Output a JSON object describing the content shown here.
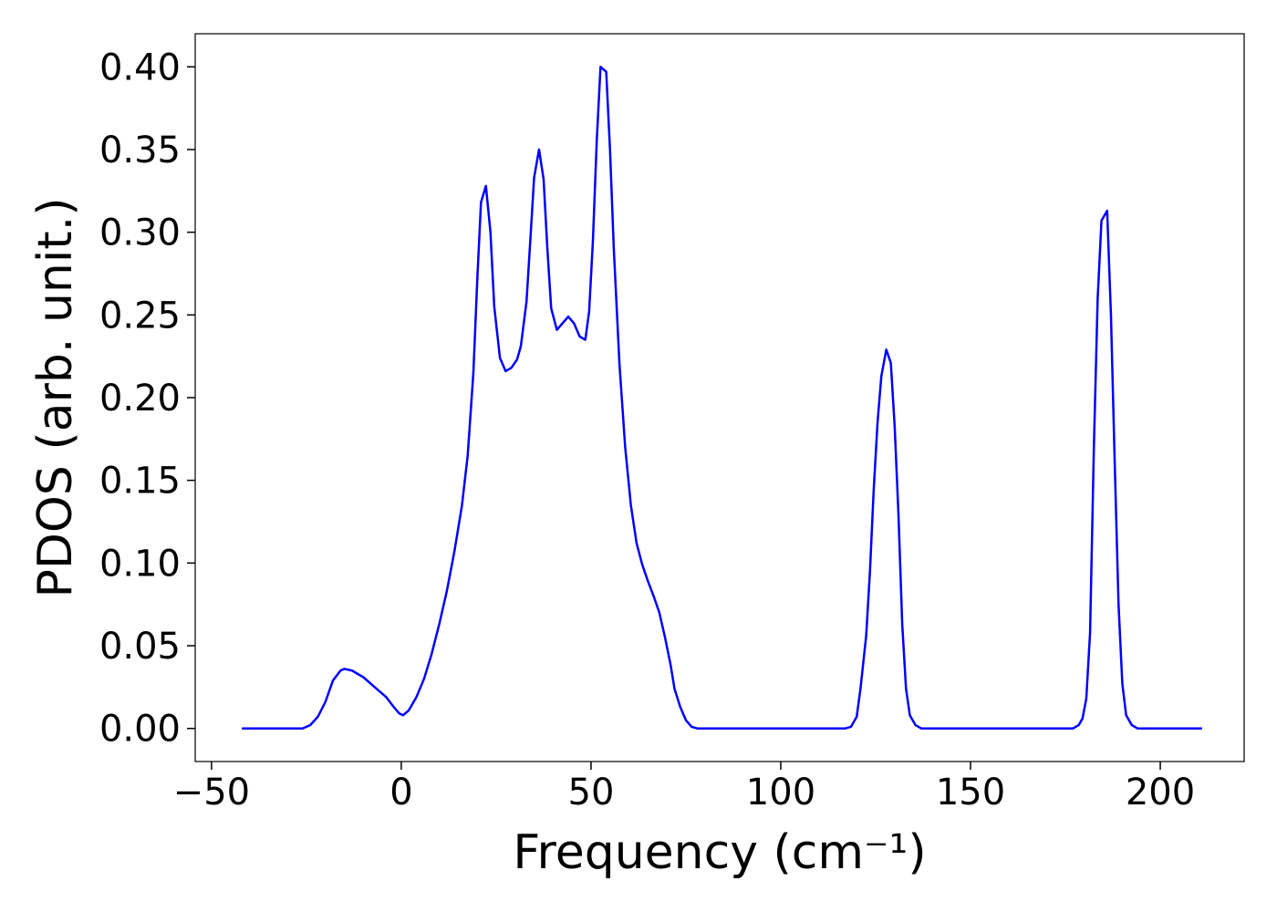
{
  "chart_data": {
    "type": "line",
    "xlabel": "Frequency (cm⁻¹)",
    "ylabel": "PDOS (arb. unit.)",
    "xlim": [
      -54.3,
      222.1
    ],
    "ylim": [
      -0.02,
      0.42
    ],
    "xticks": [
      {
        "value": -50,
        "label": "−50"
      },
      0,
      50,
      100,
      150,
      200
    ],
    "yticks": [
      {
        "value": 0,
        "label": "0.00"
      },
      {
        "value": 0.05,
        "label": "0.05"
      },
      {
        "value": 0.1,
        "label": "0.10"
      },
      {
        "value": 0.15,
        "label": "0.15"
      },
      {
        "value": 0.2,
        "label": "0.20"
      },
      {
        "value": 0.25,
        "label": "0.25"
      },
      {
        "value": 0.3,
        "label": "0.30"
      },
      {
        "value": 0.35,
        "label": "0.35"
      },
      {
        "value": 0.4,
        "label": "0.40"
      }
    ],
    "grid": false,
    "x": [
      -42,
      -26,
      -24,
      -22,
      -20,
      -18,
      -16,
      -15,
      -13,
      -10,
      -7,
      -4,
      -2,
      -0.5,
      0.5,
      2,
      4,
      6,
      8,
      10,
      12,
      14,
      16,
      17.5,
      19,
      20,
      21,
      22.3,
      23.5,
      24.5,
      26,
      27.5,
      29,
      30.5,
      31.5,
      33,
      34,
      35,
      36.3,
      37.5,
      38.5,
      39.5,
      41,
      42.5,
      44,
      45.5,
      47,
      48.5,
      49.5,
      50.5,
      51.5,
      52.5,
      54,
      55,
      56,
      57.5,
      59,
      60.5,
      62,
      63.5,
      65,
      66.5,
      68,
      69.5,
      71,
      72,
      73.5,
      75,
      76.5,
      78,
      117,
      118.5,
      120,
      121,
      122.5,
      123.5,
      124.5,
      125.5,
      126.5,
      127.8,
      129,
      130,
      131,
      132,
      133,
      134,
      135.5,
      137,
      177,
      178.5,
      179.5,
      180.5,
      181.5,
      182.5,
      183.5,
      184.5,
      186,
      187,
      188,
      189,
      190,
      191,
      192.5,
      194,
      211
    ],
    "series": [
      {
        "name": "PDOS",
        "color": "#0000ff",
        "values": [
          0,
          0,
          0.002,
          0.007,
          0.016,
          0.029,
          0.035,
          0.036,
          0.035,
          0.031,
          0.025,
          0.019,
          0.013,
          0.009,
          0.008,
          0.011,
          0.019,
          0.03,
          0.045,
          0.063,
          0.083,
          0.107,
          0.135,
          0.165,
          0.215,
          0.27,
          0.318,
          0.328,
          0.3,
          0.255,
          0.224,
          0.216,
          0.218,
          0.223,
          0.231,
          0.258,
          0.295,
          0.333,
          0.35,
          0.332,
          0.29,
          0.254,
          0.241,
          0.245,
          0.249,
          0.245,
          0.237,
          0.235,
          0.252,
          0.295,
          0.355,
          0.4,
          0.397,
          0.35,
          0.29,
          0.22,
          0.17,
          0.135,
          0.112,
          0.099,
          0.089,
          0.08,
          0.07,
          0.055,
          0.038,
          0.024,
          0.013,
          0.005,
          0.001,
          0,
          0,
          0.001,
          0.007,
          0.024,
          0.056,
          0.095,
          0.145,
          0.185,
          0.213,
          0.229,
          0.221,
          0.183,
          0.13,
          0.063,
          0.024,
          0.008,
          0.002,
          0,
          0,
          0.002,
          0.006,
          0.018,
          0.058,
          0.17,
          0.26,
          0.307,
          0.313,
          0.25,
          0.16,
          0.075,
          0.027,
          0.008,
          0.002,
          0,
          0
        ]
      }
    ]
  }
}
